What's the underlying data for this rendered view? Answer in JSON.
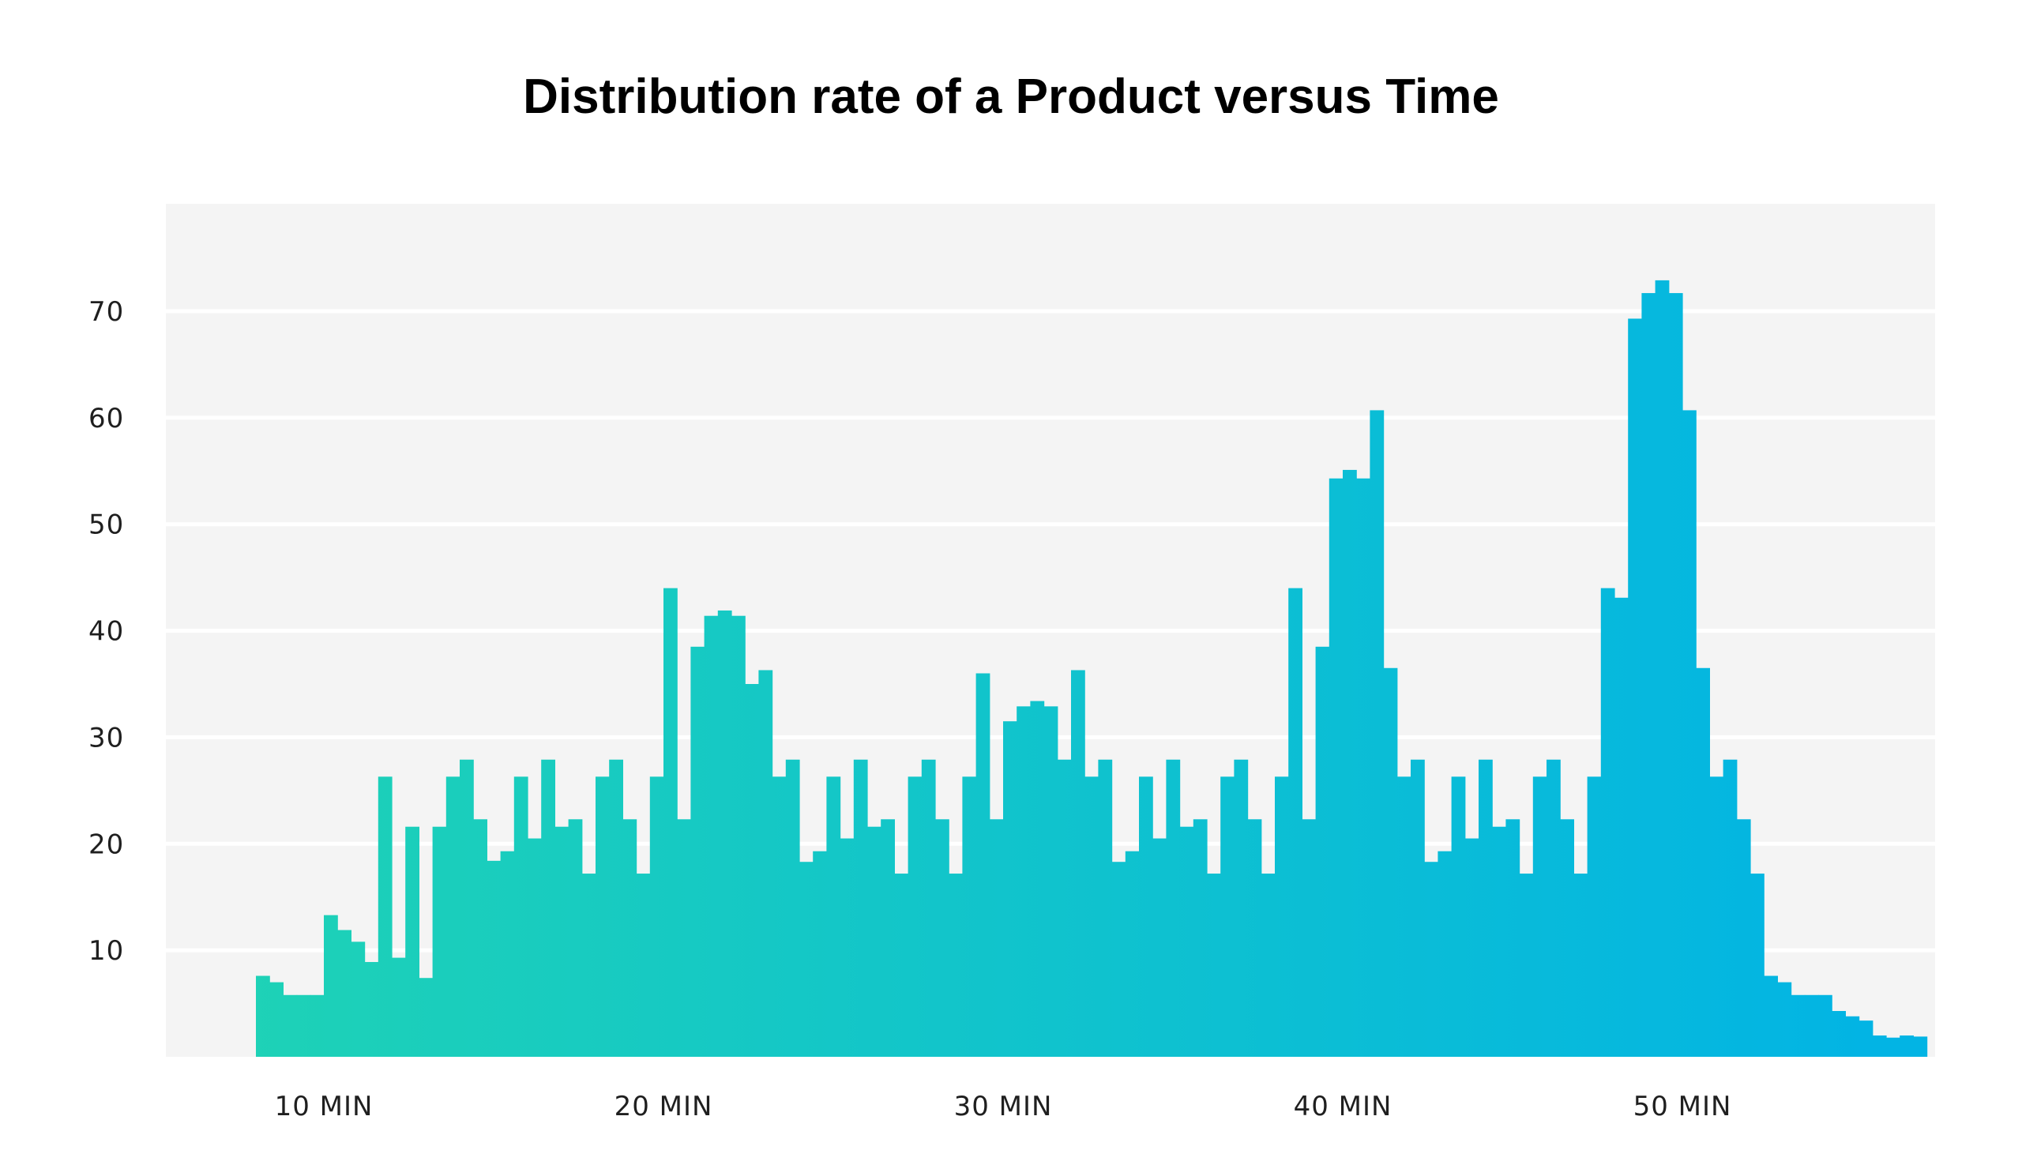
{
  "chart_data": {
    "type": "bar",
    "title": "Distribution rate of a Product versus Time",
    "xlabel": "",
    "ylabel": "",
    "ylim": [
      0,
      80
    ],
    "y_ticks": [
      10,
      20,
      30,
      40,
      50,
      60,
      70
    ],
    "y_tick_labels": [
      "10",
      "20",
      "30",
      "40",
      "50",
      "60",
      "70"
    ],
    "x_ticks": [
      10,
      20,
      30,
      40,
      50
    ],
    "x_tick_labels": [
      "10 MIN",
      "20 MIN",
      "30 MIN",
      "40 MIN",
      "50 MIN"
    ],
    "x_start": 8,
    "bin_width": 0.4,
    "grid": "horizontal",
    "colors": {
      "gradient_start": "#1ED2B6",
      "gradient_end": "#02B4E4",
      "background": "#F4F4F4",
      "grid": "#FFFFFF"
    },
    "values": [
      7.6,
      7.0,
      5.8,
      5.8,
      5.8,
      13.3,
      11.9,
      10.8,
      8.9,
      26.3,
      9.3,
      21.6,
      7.4,
      21.6,
      26.3,
      27.9,
      22.3,
      18.4,
      19.3,
      26.3,
      20.5,
      27.9,
      21.6,
      22.3,
      17.2,
      26.3,
      27.9,
      22.3,
      17.2,
      26.3,
      44.0,
      22.3,
      38.5,
      41.4,
      41.9,
      41.4,
      35.0,
      36.3,
      26.3,
      27.9,
      18.3,
      19.3,
      26.3,
      20.5,
      27.9,
      21.6,
      22.3,
      17.2,
      26.3,
      27.9,
      22.3,
      17.2,
      26.3,
      36.0,
      22.3,
      31.5,
      32.9,
      33.4,
      32.9,
      27.9,
      36.3,
      26.3,
      27.9,
      18.3,
      19.3,
      26.3,
      20.5,
      27.9,
      21.6,
      22.3,
      17.2,
      26.3,
      27.9,
      22.3,
      17.2,
      26.3,
      44.0,
      22.3,
      38.5,
      54.3,
      55.1,
      54.3,
      60.7,
      36.5,
      26.3,
      27.9,
      18.3,
      19.3,
      26.3,
      20.5,
      27.9,
      21.6,
      22.3,
      17.2,
      26.3,
      27.9,
      22.3,
      17.2,
      26.3,
      44.0,
      43.1,
      69.3,
      71.7,
      72.9,
      71.7,
      60.7,
      36.5,
      26.3,
      27.9,
      22.3,
      17.2,
      7.6,
      7.0,
      5.8,
      5.8,
      5.8,
      4.3,
      3.8,
      3.4,
      2.0,
      1.8,
      2.0,
      1.9
    ]
  }
}
